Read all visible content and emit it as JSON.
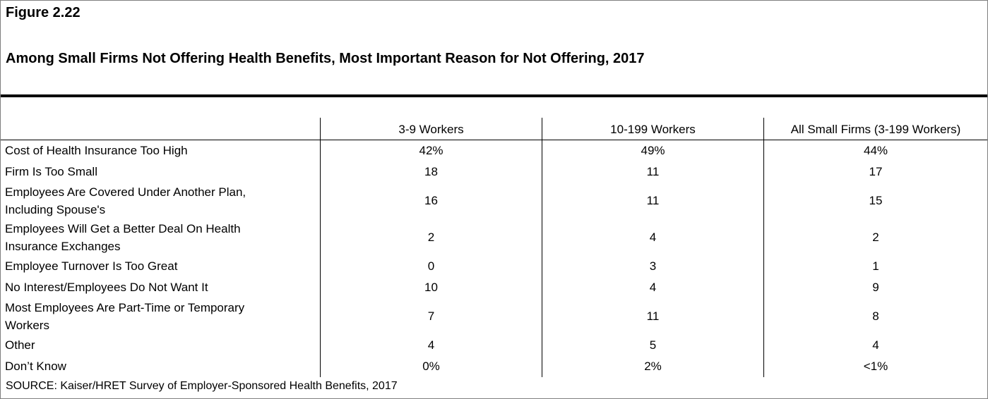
{
  "figure_label": "Figure 2.22",
  "title": "Among Small Firms Not Offering Health Benefits, Most Important Reason for Not Offering, 2017",
  "columns": [
    "3-9 Workers",
    "10-199 Workers",
    "All Small Firms (3-199 Workers)"
  ],
  "rows": [
    {
      "label": "Cost of Health Insurance Too High",
      "values": [
        "42%",
        "49%",
        "44%"
      ]
    },
    {
      "label": "Firm Is Too Small",
      "values": [
        "18",
        "11",
        "17"
      ]
    },
    {
      "label": "Employees Are Covered Under Another Plan, Including Spouse's",
      "values": [
        "16",
        "11",
        "15"
      ]
    },
    {
      "label": "Employees Will Get a Better Deal On Health Insurance Exchanges",
      "values": [
        "2",
        "4",
        "2"
      ]
    },
    {
      "label": "Employee Turnover Is Too Great",
      "values": [
        "0",
        "3",
        "1"
      ]
    },
    {
      "label": "No Interest/Employees Do Not Want It",
      "values": [
        "10",
        "4",
        "9"
      ]
    },
    {
      "label": "Most Employees Are Part-Time or Temporary Workers",
      "values": [
        "7",
        "11",
        "8"
      ]
    },
    {
      "label": "Other",
      "values": [
        "4",
        "5",
        "4"
      ]
    },
    {
      "label": "Don’t Know",
      "values": [
        "0%",
        "2%",
        "<1%"
      ]
    }
  ],
  "source": "SOURCE: Kaiser/HRET Survey of Employer-Sponsored Health Benefits, 2017"
}
